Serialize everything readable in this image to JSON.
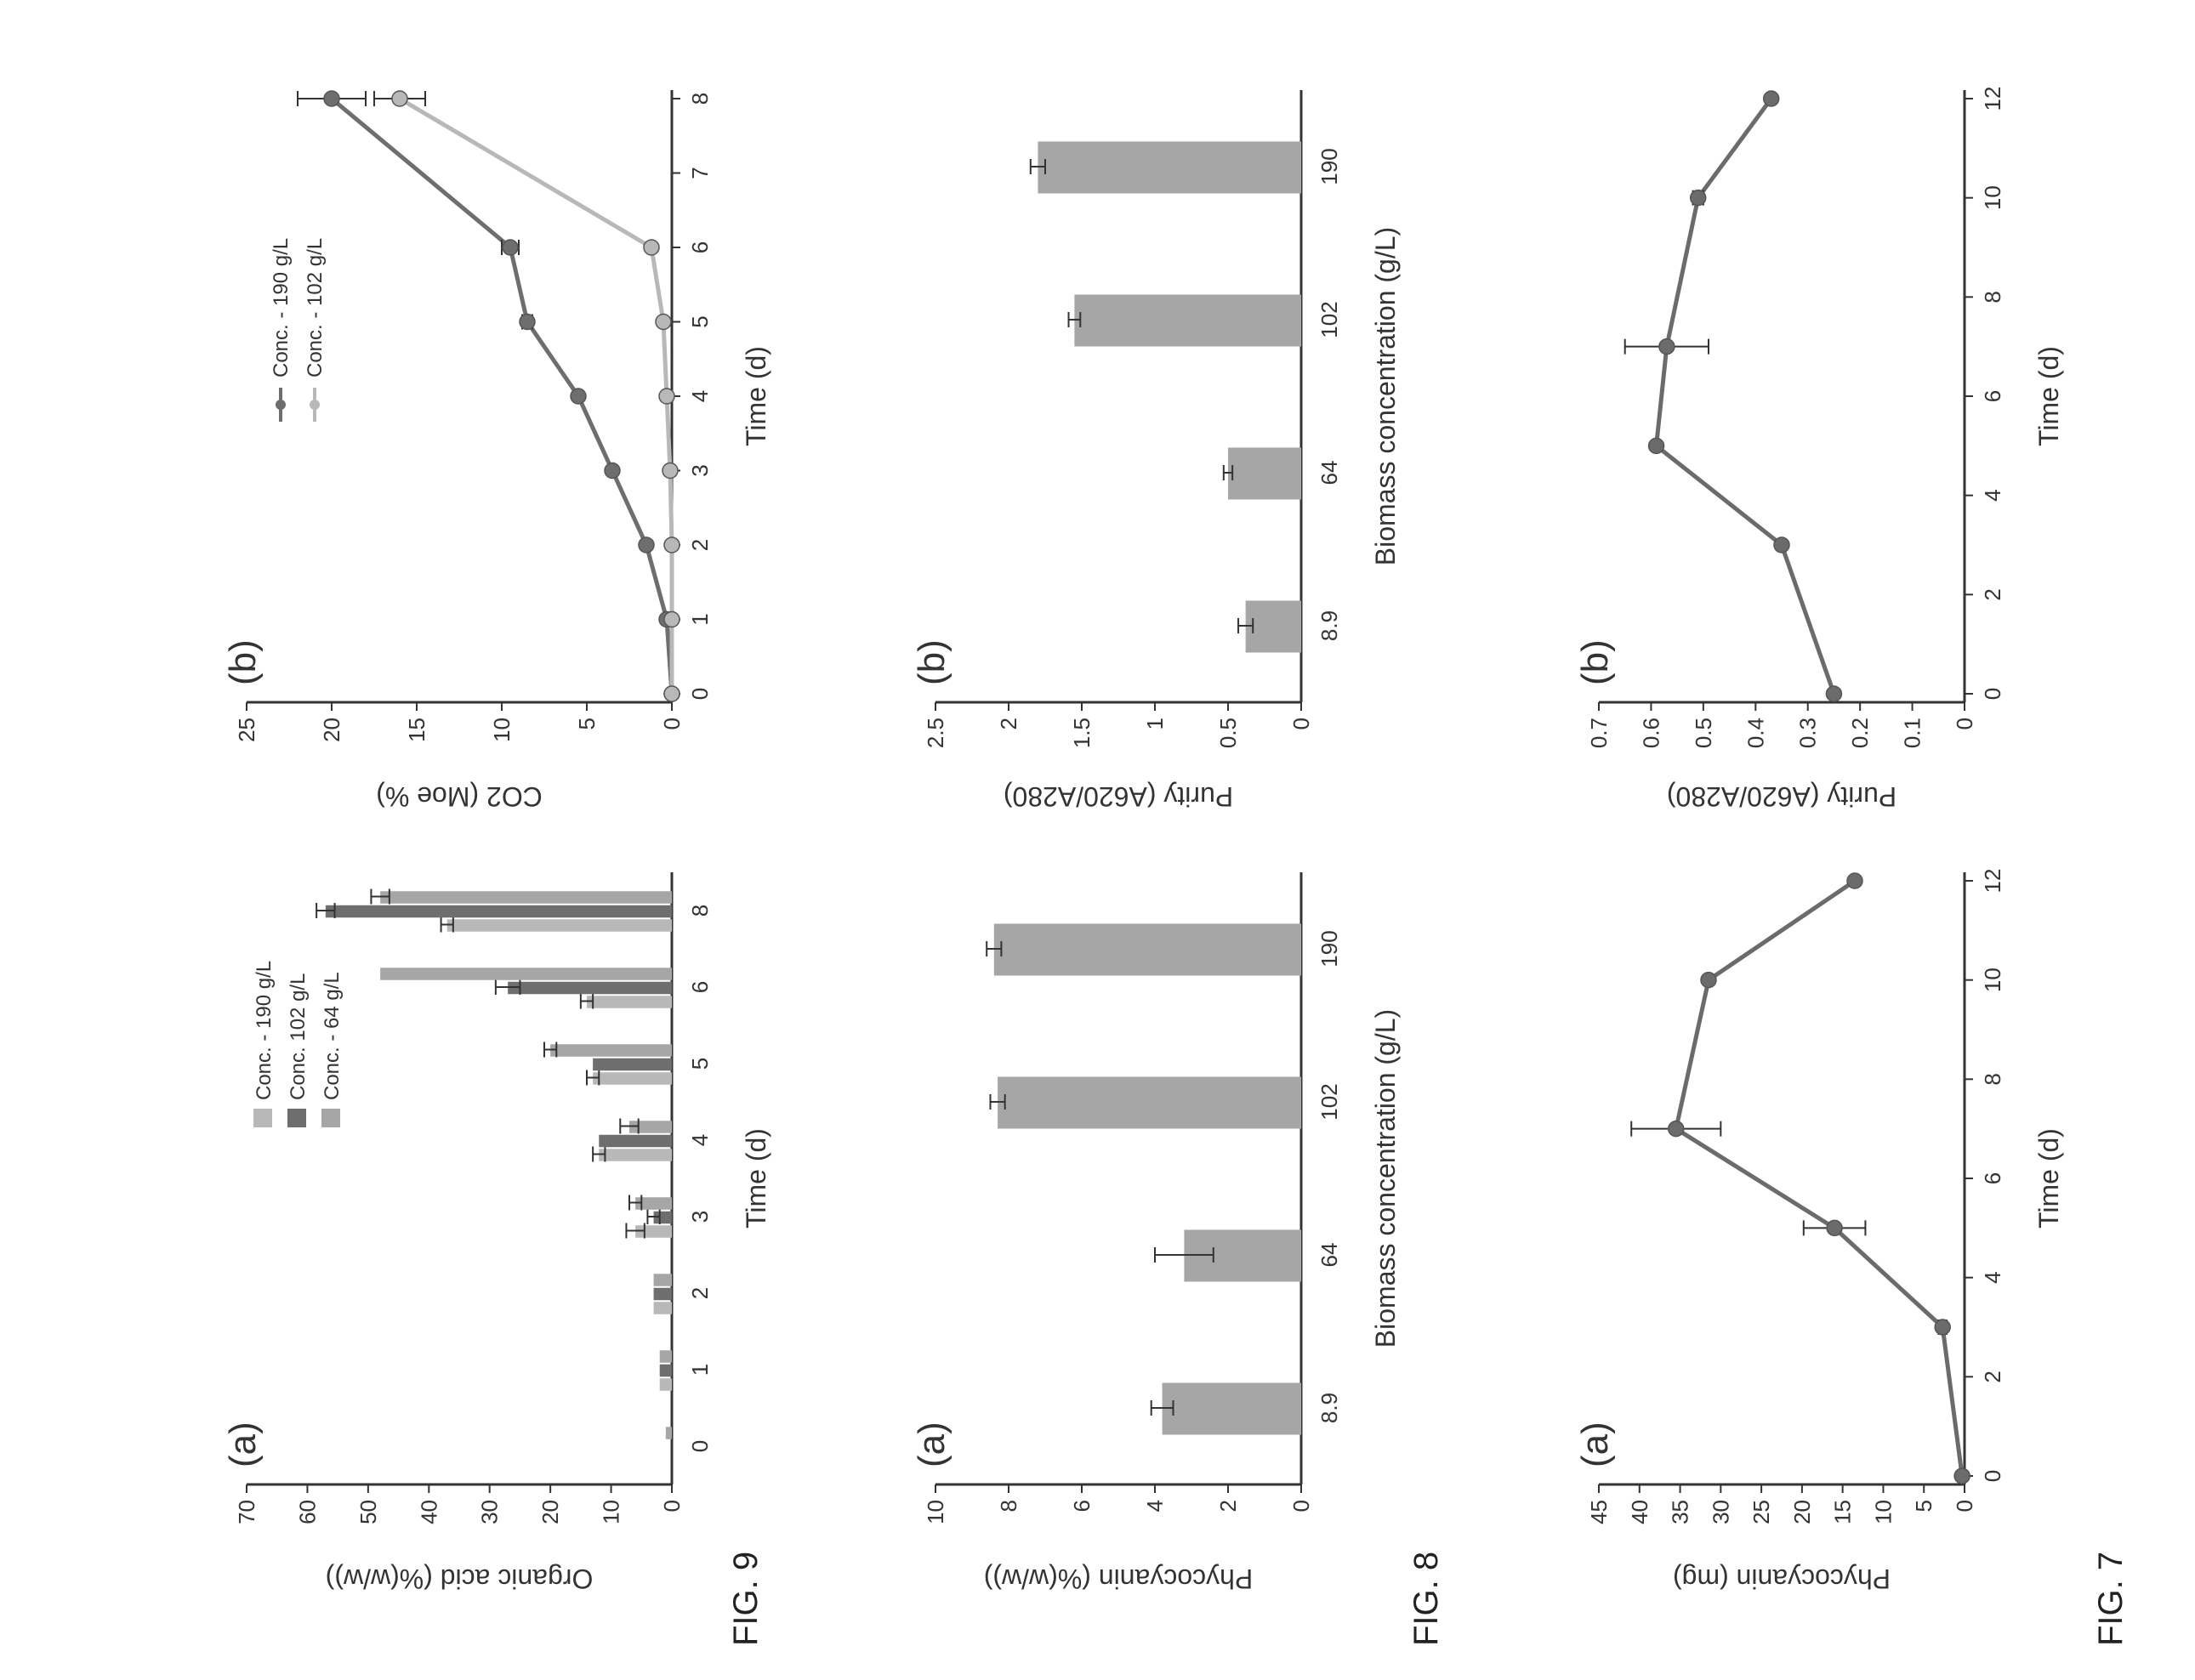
{
  "figures": [
    {
      "label": "FIG. 7"
    },
    {
      "label": "FIG. 8"
    },
    {
      "label": "FIG. 9"
    }
  ],
  "colors": {
    "axis": "#333333",
    "line_series": "#6b6b6b",
    "bar_fill": "#a6a6a6",
    "light_series": "#b8b8b8",
    "dark_series": "#6e6e6e"
  },
  "chart_data": [
    {
      "id": "fig7a",
      "figure": "FIG. 7",
      "type": "line",
      "panel": "(a)",
      "xlabel": "Time (d)",
      "ylabel": "Phycocyanin (mg)",
      "xlim": [
        0,
        12
      ],
      "ylim": [
        0,
        45
      ],
      "xticks": [
        "0",
        "2",
        "4",
        "6",
        "8",
        "10",
        "12"
      ],
      "yticks": [
        "0",
        "5",
        "10",
        "15",
        "20",
        "25",
        "30",
        "35",
        "40",
        "45"
      ],
      "series": [
        {
          "x": [
            0,
            3,
            5,
            7,
            10,
            12
          ],
          "y": [
            0.3,
            2.7,
            16,
            35.5,
            31.5,
            13.5
          ],
          "err": [
            0,
            0.5,
            3.8,
            5.5,
            0,
            0
          ]
        }
      ]
    },
    {
      "id": "fig7b",
      "figure": "FIG. 7",
      "type": "line",
      "panel": "(b)",
      "xlabel": "Time (d)",
      "ylabel": "Purity (A620/A280)",
      "xlim": [
        0,
        12
      ],
      "ylim": [
        0,
        0.7
      ],
      "xticks": [
        "0",
        "2",
        "4",
        "6",
        "8",
        "10",
        "12"
      ],
      "yticks": [
        "0",
        "0.1",
        "0.2",
        "0.3",
        "0.4",
        "0.5",
        "0.6",
        "0.7"
      ],
      "series": [
        {
          "x": [
            0,
            3,
            5,
            7,
            10,
            12
          ],
          "y": [
            0.25,
            0.35,
            0.59,
            0.57,
            0.51,
            0.37
          ],
          "err": [
            0,
            0,
            0,
            0.08,
            0.01,
            0
          ]
        }
      ]
    },
    {
      "id": "fig8a",
      "figure": "FIG. 8",
      "type": "bar",
      "panel": "(a)",
      "xlabel": "Biomass concentration (g/L)",
      "ylabel": "Phycocyanin (%(w/w))",
      "categories": [
        "8.9",
        "64",
        "102",
        "190"
      ],
      "ylim": [
        0,
        10
      ],
      "yticks": [
        "0",
        "2",
        "4",
        "6",
        "8",
        "10"
      ],
      "values": [
        3.8,
        3.2,
        8.3,
        8.4
      ],
      "err": [
        0.3,
        0.8,
        0.2,
        0.2
      ]
    },
    {
      "id": "fig8b",
      "figure": "FIG. 8",
      "type": "bar",
      "panel": "(b)",
      "xlabel": "Biomass concentration (g/L)",
      "ylabel": "Purity (A620/A280)",
      "categories": [
        "8.9",
        "64",
        "102",
        "190"
      ],
      "ylim": [
        0,
        2.5
      ],
      "yticks": [
        "0",
        "0.5",
        "1",
        "1.5",
        "2",
        "2.5"
      ],
      "values": [
        0.38,
        0.5,
        1.55,
        1.8
      ],
      "err": [
        0.05,
        0.03,
        0.04,
        0.05
      ]
    },
    {
      "id": "fig9a",
      "figure": "FIG. 9",
      "type": "bar",
      "panel": "(a)",
      "xlabel": "Time (d)",
      "ylabel": "Organic acid (%(w/w))",
      "categories": [
        "0",
        "1",
        "2",
        "3",
        "4",
        "5",
        "6",
        "8"
      ],
      "ylim": [
        0,
        70
      ],
      "yticks": [
        "0",
        "10",
        "20",
        "30",
        "40",
        "50",
        "60",
        "70"
      ],
      "legend_position": "top-left",
      "series": [
        {
          "name": "Conc. - 190 g/L",
          "values": [
            0,
            2,
            3,
            6,
            12,
            13,
            14,
            37
          ],
          "err": [
            0,
            0,
            0,
            1.5,
            1,
            1,
            1,
            1
          ]
        },
        {
          "name": "Conc. 102 g/L",
          "values": [
            0,
            2,
            3,
            3,
            12,
            13,
            27,
            57
          ],
          "err": [
            0,
            0,
            0,
            1,
            0,
            0,
            2,
            1.5
          ]
        },
        {
          "name": "Conc. - 64 g/L",
          "values": [
            1,
            2,
            3,
            6,
            7,
            20,
            48,
            48
          ],
          "err": [
            0,
            0,
            0,
            1,
            1.5,
            1,
            0,
            1.5
          ]
        }
      ]
    },
    {
      "id": "fig9b",
      "figure": "FIG. 9",
      "type": "line",
      "panel": "(b)",
      "xlabel": "Time (d)",
      "ylabel": "CO2 (Moe %)",
      "xlim": [
        0,
        8
      ],
      "ylim": [
        0,
        25
      ],
      "xticks": [
        "0",
        "1",
        "2",
        "3",
        "4",
        "5",
        "6",
        "7",
        "8"
      ],
      "yticks": [
        "0",
        "5",
        "10",
        "15",
        "20",
        "25"
      ],
      "legend_position": "top-left",
      "series": [
        {
          "name": "Conc. - 190 g/L",
          "x": [
            0,
            1,
            2,
            3,
            4,
            5,
            6,
            8
          ],
          "y": [
            0,
            0.3,
            1.5,
            3.5,
            5.5,
            8.5,
            9.5,
            20
          ],
          "err": [
            0,
            0,
            0,
            0,
            0,
            0.3,
            0.5,
            2
          ]
        },
        {
          "name": "Conc. - 102 g/L",
          "x": [
            0,
            1,
            2,
            3,
            4,
            5,
            6,
            8
          ],
          "y": [
            0,
            0,
            0,
            0.1,
            0.3,
            0.5,
            1.2,
            16
          ],
          "err": [
            0,
            0,
            0,
            0,
            0,
            0,
            0,
            1.5
          ]
        }
      ]
    }
  ]
}
